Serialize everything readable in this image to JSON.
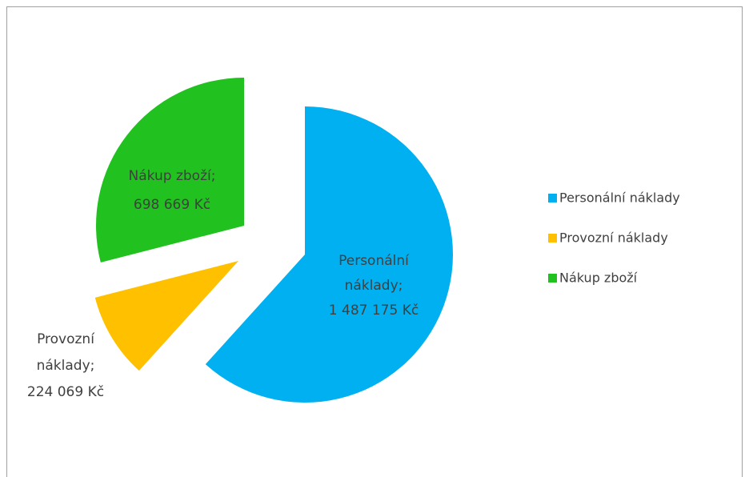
{
  "chart_data": {
    "type": "pie",
    "categories": [
      "Personální náklady",
      "Provozní náklady",
      "Nákup zboží"
    ],
    "values": [
      1487175,
      224069,
      698669
    ],
    "value_labels": [
      [
        "Personální",
        "náklady;",
        "1 487 175 Kč"
      ],
      [
        "Provozní",
        "náklady;",
        "224 069 Kč"
      ],
      [
        "Nákup zboží;",
        "698 669 Kč"
      ]
    ],
    "colors": [
      "#00b0f0",
      "#ffc000",
      "#21c11f"
    ],
    "legend": "right"
  }
}
